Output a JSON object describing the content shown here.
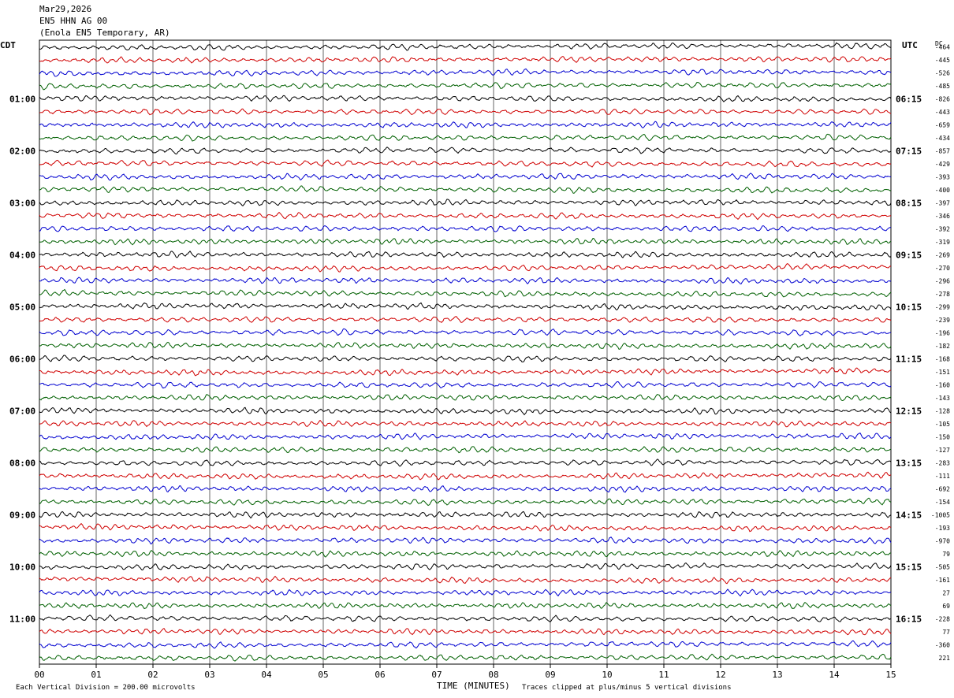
{
  "header": {
    "date": "Mar29,2026",
    "channel": "EN5 HHN AG 00",
    "station": "(Enola EN5 Temporary, AR)"
  },
  "left_tz": "CDT",
  "right_tz": "UTC",
  "dc_label": "DC",
  "footer": {
    "division": "Each Vertical Division =  200.00 microvolts",
    "clip_note": "Traces clipped at plus/minus 5 vertical divisions"
  },
  "colors": {
    "trace_cycle": [
      "#000000",
      "#d00000",
      "#0000d0",
      "#006000"
    ],
    "grid": "#000000",
    "background": "#ffffff"
  },
  "chart_data": {
    "type": "line",
    "title": "",
    "xlabel": "TIME (MINUTES)",
    "ylabel": "",
    "xlim": [
      0,
      15
    ],
    "x_ticks": [
      "00",
      "01",
      "02",
      "03",
      "04",
      "05",
      "06",
      "07",
      "08",
      "09",
      "10",
      "11",
      "12",
      "13",
      "14",
      "15"
    ],
    "left_hour_labels": [
      "01:00",
      "02:00",
      "03:00",
      "04:00",
      "05:00",
      "06:00",
      "07:00",
      "08:00",
      "09:00",
      "10:00",
      "11:00"
    ],
    "right_hour_labels": [
      "06:15",
      "07:15",
      "08:15",
      "09:15",
      "10:15",
      "11:15",
      "12:15",
      "13:15",
      "14:15",
      "15:15",
      "16:15"
    ],
    "trace_count": 48,
    "minutes_per_trace": 15,
    "dc_offsets": [
      "-464",
      "-445",
      "-526",
      "-485",
      "-826",
      "-443",
      "-659",
      "-434",
      "-857",
      "-429",
      "-393",
      "-400",
      "-397",
      "-346",
      "-392",
      "-319",
      "-269",
      "-270",
      "-296",
      "-278",
      "-299",
      "-239",
      "-196",
      "-182",
      "-168",
      "-151",
      "-160",
      "-143",
      "-128",
      "-105",
      "-150",
      "-127",
      "-283",
      "-111",
      "-692",
      "-154",
      "-1005",
      "-193",
      "-970",
      "79",
      "-505",
      "-161",
      "27",
      "69",
      "-228",
      "77",
      "-360",
      "221"
    ],
    "grid": true,
    "legend": "none"
  }
}
